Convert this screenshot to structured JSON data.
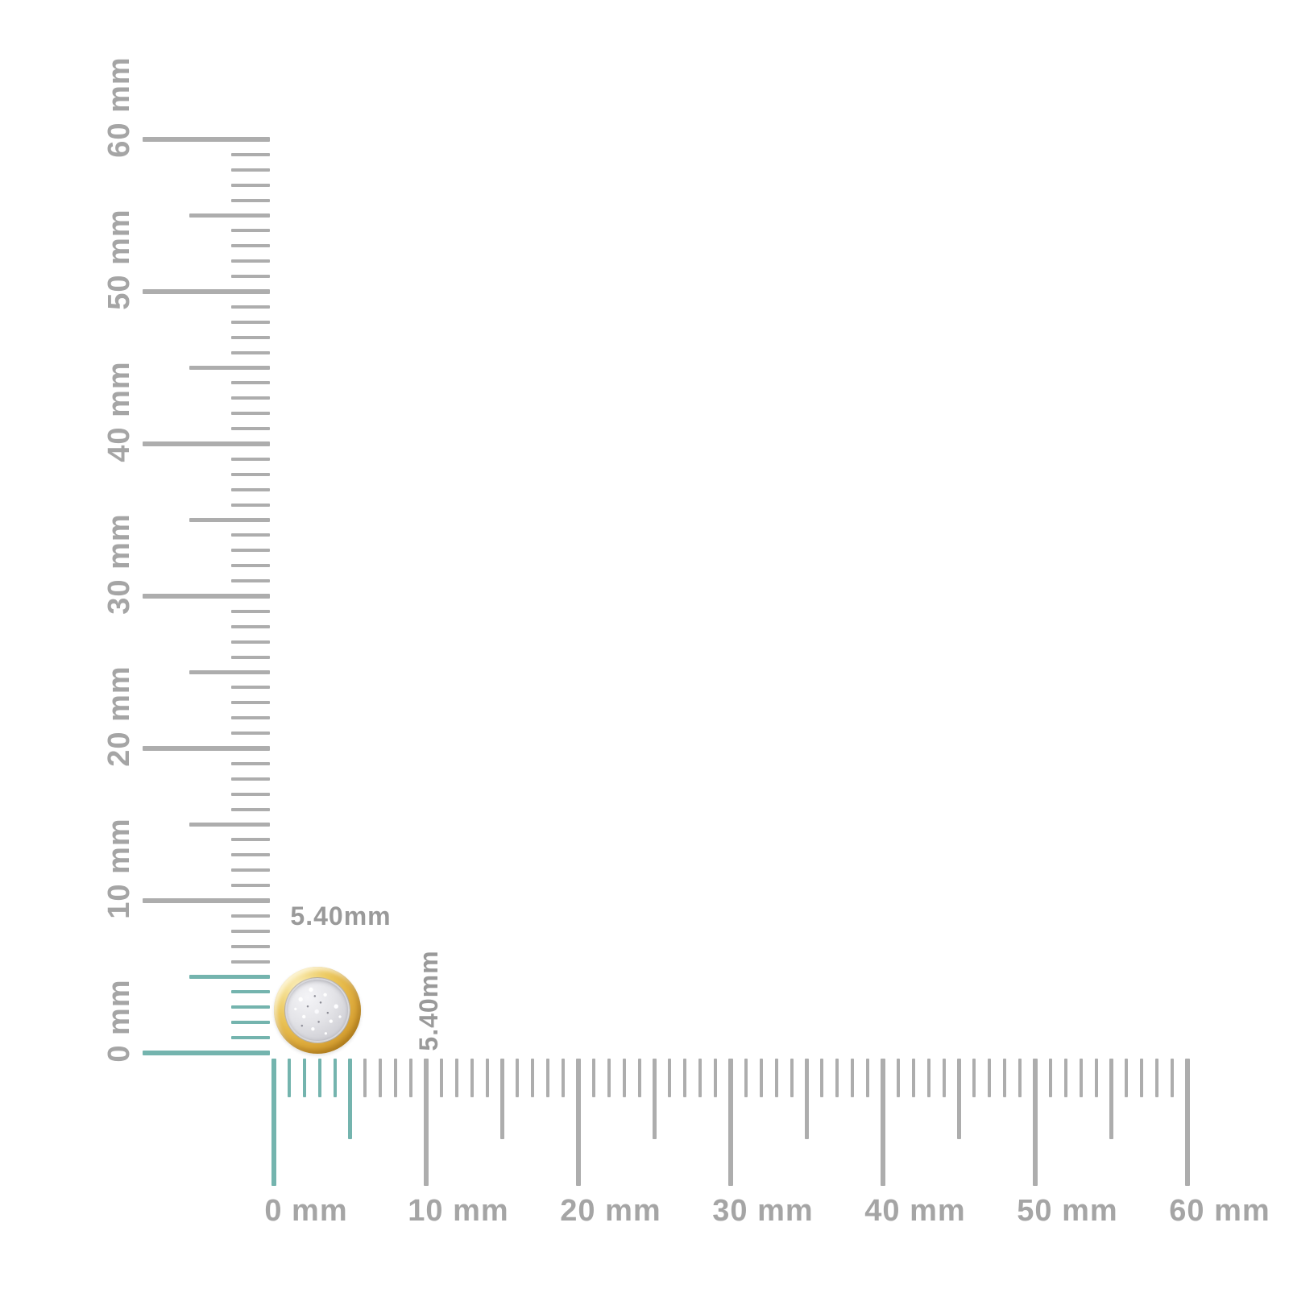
{
  "page": {
    "background": "#ffffff",
    "description": "Jewelry product size-reference image with millimeter rulers"
  },
  "item": {
    "name": "round pave diamond cluster stud earring in yellow-gold bezel",
    "width_label": "5.40mm",
    "height_label": "5.40mm"
  },
  "colors": {
    "tick_gray": "#adadad",
    "tick_teal": "#74b4ae",
    "ruler_label_gray": "#a5a5a5",
    "dim_label_gray": "#9a9a9a",
    "gold_light": "#fbf1c6",
    "gold_mid": "#e4b647",
    "gold_deep": "#b07e1d",
    "pave_light": "#f4f4f7",
    "pave_base": "#dedee2",
    "pave_shadow": "#bdbdc3"
  },
  "vertical_ruler": {
    "orientation": "vertical",
    "unit": "mm",
    "min_mm": 0,
    "max_mm": 60,
    "major_step_mm": 10,
    "medium_step_mm": 5,
    "minor_step_mm": 1,
    "highlight_to_mm": 5,
    "labels": [
      {
        "mm": 0,
        "text": "0 mm"
      },
      {
        "mm": 10,
        "text": "10 mm"
      },
      {
        "mm": 20,
        "text": "20 mm"
      },
      {
        "mm": 30,
        "text": "30 mm"
      },
      {
        "mm": 40,
        "text": "40 mm"
      },
      {
        "mm": 50,
        "text": "50 mm"
      },
      {
        "mm": 60,
        "text": "60 mm"
      }
    ]
  },
  "horizontal_ruler": {
    "orientation": "horizontal",
    "unit": "mm",
    "min_mm": 0,
    "max_mm": 60,
    "major_step_mm": 10,
    "medium_step_mm": 5,
    "minor_step_mm": 1,
    "highlight_to_mm": 5,
    "labels": [
      {
        "mm": 0,
        "text": "0 mm"
      },
      {
        "mm": 10,
        "text": "10 mm"
      },
      {
        "mm": 20,
        "text": "20 mm"
      },
      {
        "mm": 30,
        "text": "30 mm"
      },
      {
        "mm": 40,
        "text": "40 mm"
      },
      {
        "mm": 50,
        "text": "50 mm"
      },
      {
        "mm": 60,
        "text": "60 mm"
      }
    ]
  }
}
